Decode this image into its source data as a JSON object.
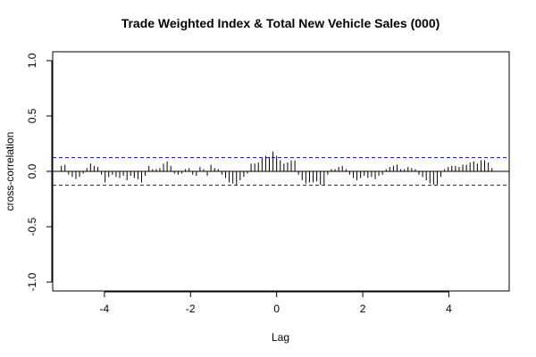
{
  "chart_data": {
    "type": "bar",
    "subtype": "cross-correlation (ccf) spike plot",
    "title": "Trade Weighted Index & Total New Vehicle Sales (000)",
    "xlabel": "Lag",
    "ylabel": "cross-correlation",
    "xlim": [
      -5.2,
      5.4
    ],
    "ylim": [
      -1.08,
      1.08
    ],
    "x_ticks": [
      -4,
      -2,
      0,
      2,
      4
    ],
    "x_tick_labels": [
      "-4",
      "-2",
      "0",
      "2",
      "4"
    ],
    "y_ticks": [
      -1.0,
      -0.5,
      0.0,
      0.5,
      1.0
    ],
    "y_tick_labels": [
      "-1.0",
      "-0.5",
      "0.0",
      "0.5",
      "1.0"
    ],
    "confidence_bounds": [
      0.125,
      -0.125
    ],
    "lag_step": 0.0833333,
    "lag_range": [
      -5,
      5
    ],
    "values": [
      0.05,
      0.06,
      -0.03,
      -0.05,
      -0.07,
      -0.05,
      -0.02,
      0.03,
      0.07,
      0.05,
      0.04,
      -0.03,
      -0.1,
      -0.05,
      -0.03,
      -0.05,
      -0.06,
      -0.04,
      -0.08,
      -0.04,
      -0.06,
      -0.07,
      -0.1,
      -0.04,
      0.05,
      0.02,
      0.02,
      0.03,
      0.07,
      0.09,
      0.05,
      -0.02,
      -0.03,
      -0.02,
      0.02,
      0.03,
      -0.03,
      -0.04,
      0.04,
      0.02,
      -0.04,
      0.06,
      0.03,
      0.02,
      -0.03,
      -0.06,
      -0.1,
      -0.11,
      -0.12,
      -0.08,
      -0.05,
      -0.02,
      0.07,
      0.07,
      0.08,
      0.12,
      0.14,
      0.13,
      0.18,
      0.14,
      0.1,
      0.07,
      0.08,
      0.1,
      0.1,
      -0.03,
      -0.08,
      -0.11,
      -0.1,
      -0.1,
      -0.09,
      -0.12,
      -0.12,
      -0.03,
      0.02,
      0.02,
      0.04,
      0.05,
      0.02,
      -0.03,
      -0.06,
      -0.08,
      -0.06,
      -0.04,
      -0.06,
      -0.05,
      -0.07,
      -0.04,
      -0.03,
      0.02,
      0.04,
      0.05,
      0.06,
      0.02,
      0.02,
      0.04,
      0.03,
      0.02,
      -0.03,
      -0.05,
      -0.08,
      -0.11,
      -0.12,
      -0.12,
      -0.05,
      0.02,
      0.04,
      0.05,
      0.05,
      0.04,
      0.06,
      0.06,
      0.08,
      0.09,
      0.07,
      0.1,
      0.1,
      0.08,
      0.03
    ],
    "colors": {
      "spike": "#000000",
      "zero_line": "#000000",
      "confidence_line": "#1f1fdd",
      "frame": "#000000",
      "background": "#ffffff"
    }
  }
}
